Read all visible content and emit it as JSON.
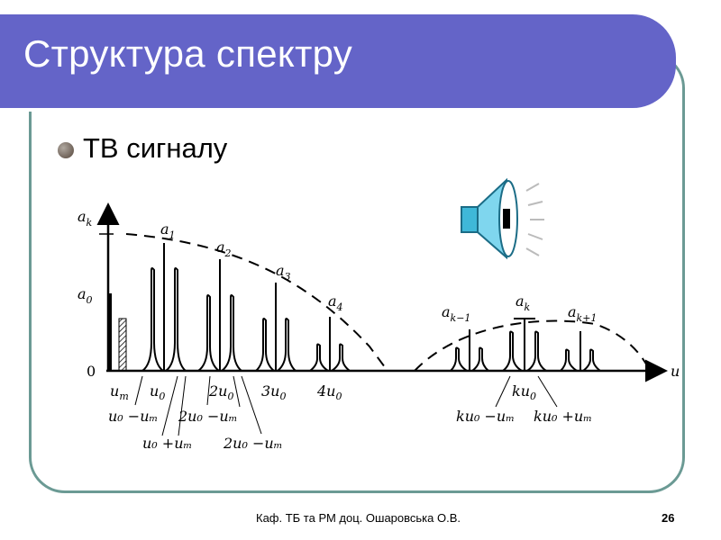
{
  "slide": {
    "title": "Структура спектру",
    "bullet": "ТВ сигналу",
    "footer_text": "Каф. ТБ та РМ доц. Ошаровська О.В.",
    "page_number": "26"
  },
  "colors": {
    "title_bar": "#6464c8",
    "frame": "#6b9a94",
    "speaker": "#3fb8d8"
  },
  "icons": {
    "speaker": "speaker-icon",
    "bullet": "bullet-dot-icon"
  },
  "diagram": {
    "axis_y_label": "a",
    "axis_y_sub": "k",
    "axis_x_label": "u",
    "y_a0": "a",
    "y_a0_sub": "0",
    "y_zero": "0",
    "peak_labels": [
      {
        "main": "a",
        "sub": "1"
      },
      {
        "main": "a",
        "sub": "2"
      },
      {
        "main": "a",
        "sub": "3"
      },
      {
        "main": "a",
        "sub": "4"
      },
      {
        "main": "a",
        "sub": "k−1"
      },
      {
        "main": "a",
        "sub": "k"
      },
      {
        "main": "a",
        "sub": "k+1"
      }
    ],
    "tick_labels": {
      "um": "u",
      "um_sub": "m",
      "u0": "u",
      "u0_sub": "0",
      "two_u0": "2u",
      "two_u0_sub": "0",
      "three_u0": "3u",
      "three_u0_sub": "0",
      "four_u0": "4u",
      "four_u0_sub": "0",
      "ku0": "ku",
      "ku0_sub": "0"
    },
    "below_labels": {
      "u0_minus_um": "u₀ −uₘ",
      "u0_plus_um": "u₀ +uₘ",
      "two_u0_minus_um": "2u₀ −uₘ",
      "two_u0_minus_um_2": "2u₀ −uₘ",
      "ku0_minus_um": "ku₀ −uₘ",
      "ku0_plus_um": "ku₀ +uₘ"
    }
  }
}
